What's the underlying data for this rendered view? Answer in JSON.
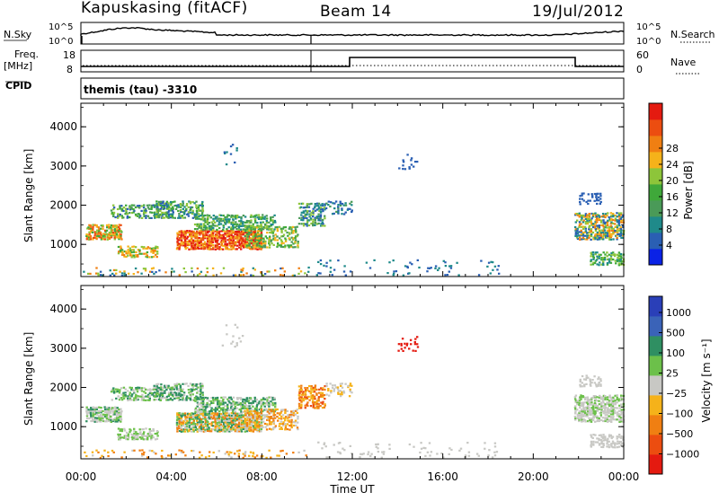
{
  "header": {
    "station": "Kapuskasing (fitACF)",
    "beam": "Beam 14",
    "date": "19/Jul/2012"
  },
  "strip": {
    "nsky_label": "N.Sky",
    "nsearch_label": "N.Search",
    "nsky_ticks": [
      "10^5",
      "10^0"
    ],
    "nsky_ticks_right": [
      "10^5",
      "10^0"
    ],
    "freq_label": "Freq.",
    "freq_unit": "[MHz]",
    "freq_ticks": [
      "18",
      "8"
    ],
    "nave_label": "Nave",
    "nave_ticks": [
      "60",
      "0"
    ],
    "cpid_label": "CPID",
    "cpid_text": "themis (tau) -3310"
  },
  "chart_data": [
    {
      "type": "heatmap",
      "name": "power",
      "ylabel": "Slant Range [km]",
      "xlabel": "",
      "y_ticks": [
        "1000",
        "2000",
        "3000",
        "4000"
      ],
      "xlim_hours": [
        0,
        24
      ],
      "ylim_km": [
        180,
        4600
      ],
      "colorbar_label": "Power [dB]",
      "colorbar_ticks": [
        "4",
        "8",
        "12",
        "16",
        "20",
        "24",
        "28"
      ],
      "colorbar_colors": [
        "#0a22e6",
        "#2a5fb3",
        "#1f8a8a",
        "#4a9a58",
        "#3fa83a",
        "#8dc53a",
        "#f5b21a",
        "#f07f12",
        "#ec4d10",
        "#e41a10"
      ],
      "grid": false
    },
    {
      "type": "heatmap",
      "name": "velocity",
      "ylabel": "Slant Range [km]",
      "xlabel": "Time UT",
      "y_ticks": [
        "1000",
        "2000",
        "3000",
        "4000"
      ],
      "x_ticks": [
        "00:00",
        "04:00",
        "08:00",
        "12:00",
        "16:00",
        "20:00",
        "00:00"
      ],
      "xlim_hours": [
        0,
        24
      ],
      "ylim_km": [
        180,
        4600
      ],
      "colorbar_label": "Velocity [m s⁻¹]",
      "colorbar_ticks": [
        "1000",
        "500",
        "100",
        "25",
        "−25",
        "−100",
        "−500",
        "−1000"
      ],
      "colorbar_colors": [
        "#2a3fb8",
        "#3a63b8",
        "#2f8f62",
        "#6cc04a",
        "#c8c8c4",
        "#f5b21a",
        "#f07f12",
        "#ec4d10",
        "#e41a10"
      ],
      "grid": false
    }
  ],
  "scatter_regions": [
    {
      "t0": 0.2,
      "t1": 1.8,
      "r0": 1100,
      "r1": 1500,
      "p": 0.8,
      "cls": [
        6,
        7,
        8,
        5,
        4
      ],
      "v": [
        4,
        4,
        3,
        2
      ]
    },
    {
      "t0": 1.3,
      "t1": 3.6,
      "r0": 1650,
      "r1": 2000,
      "p": 0.55,
      "cls": [
        3,
        4,
        5,
        1
      ],
      "v": [
        4,
        3,
        2
      ]
    },
    {
      "t0": 1.6,
      "t1": 3.4,
      "r0": 650,
      "r1": 950,
      "p": 0.6,
      "cls": [
        5,
        6,
        7,
        4
      ],
      "v": [
        4,
        3
      ]
    },
    {
      "t0": 3.2,
      "t1": 5.4,
      "r0": 1650,
      "r1": 2100,
      "p": 0.65,
      "cls": [
        1,
        2,
        3,
        4,
        5
      ],
      "v": [
        4,
        3,
        2
      ]
    },
    {
      "t0": 4.2,
      "t1": 8.0,
      "r0": 850,
      "r1": 1350,
      "p": 0.9,
      "cls": [
        8,
        9,
        9,
        7,
        6
      ],
      "v": [
        2,
        3,
        4,
        5,
        6
      ]
    },
    {
      "t0": 5.0,
      "t1": 8.6,
      "r0": 1350,
      "r1": 1750,
      "p": 0.6,
      "cls": [
        4,
        5,
        3,
        2
      ],
      "v": [
        3,
        2,
        4
      ]
    },
    {
      "t0": 7.2,
      "t1": 9.6,
      "r0": 900,
      "r1": 1450,
      "p": 0.55,
      "cls": [
        4,
        5,
        6,
        3
      ],
      "v": [
        4,
        5,
        6
      ]
    },
    {
      "t0": 9.6,
      "t1": 10.8,
      "r0": 1450,
      "r1": 2050,
      "p": 0.6,
      "cls": [
        1,
        2,
        3,
        5
      ],
      "v": [
        5,
        6,
        7
      ]
    },
    {
      "t0": 10.8,
      "t1": 12.0,
      "r0": 1750,
      "r1": 2100,
      "p": 0.35,
      "cls": [
        1,
        2,
        3
      ],
      "v": [
        4,
        5
      ]
    },
    {
      "t0": 0.0,
      "t1": 10.0,
      "r0": 180,
      "r1": 400,
      "p": 0.18,
      "cls": [
        1,
        2,
        5,
        6,
        7
      ],
      "v": [
        4,
        5,
        6
      ]
    },
    {
      "t0": 10.0,
      "t1": 18.5,
      "r0": 180,
      "r1": 600,
      "p": 0.06,
      "cls": [
        1,
        2
      ],
      "v": [
        4
      ]
    },
    {
      "t0": 21.8,
      "t1": 24.0,
      "r0": 1100,
      "r1": 1800,
      "p": 0.7,
      "cls": [
        1,
        2,
        5,
        6,
        7
      ],
      "v": [
        4,
        4,
        3
      ]
    },
    {
      "t0": 22.5,
      "t1": 24.0,
      "r0": 450,
      "r1": 800,
      "p": 0.6,
      "cls": [
        2,
        4,
        5
      ],
      "v": [
        4,
        4
      ]
    },
    {
      "t0": 22.0,
      "t1": 23.0,
      "r0": 2000,
      "r1": 2300,
      "p": 0.4,
      "cls": [
        1
      ],
      "v": [
        4
      ]
    },
    {
      "t0": 6.2,
      "t1": 7.2,
      "r0": 3000,
      "r1": 3600,
      "p": 0.08,
      "cls": [
        1,
        2
      ],
      "v": [
        4
      ]
    },
    {
      "t0": 14.0,
      "t1": 14.9,
      "r0": 2900,
      "r1": 3300,
      "p": 0.2,
      "cls": [
        1
      ],
      "v": [
        8
      ]
    }
  ],
  "legend": {
    "power_title": "Power [dB]",
    "velocity_title": "Velocity [m s⁻¹]"
  }
}
